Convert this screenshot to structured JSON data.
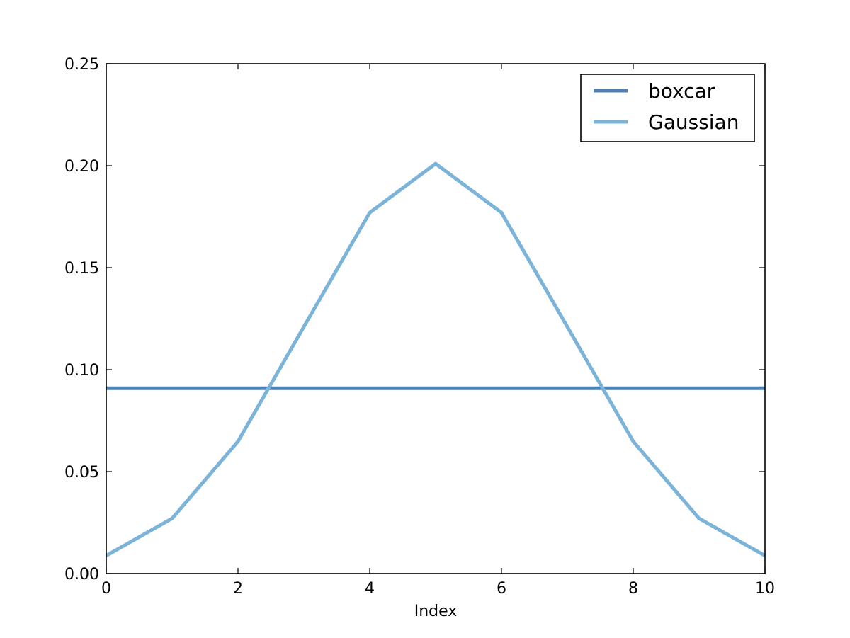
{
  "chart_data": {
    "type": "line",
    "title": "",
    "xlabel": "Index",
    "ylabel": "",
    "xlim": [
      0,
      10
    ],
    "ylim": [
      0,
      0.25
    ],
    "x_ticks": [
      0,
      2,
      4,
      6,
      8,
      10
    ],
    "x_tick_labels": [
      "0",
      "2",
      "4",
      "6",
      "8",
      "10"
    ],
    "y_ticks": [
      0,
      0.05,
      0.1,
      0.15,
      0.2,
      0.25
    ],
    "y_tick_labels": [
      "0.00",
      "0.05",
      "0.10",
      "0.15",
      "0.20",
      "0.25"
    ],
    "grid": false,
    "legend_position": "top-right",
    "x": [
      0,
      1,
      2,
      3,
      4,
      5,
      6,
      7,
      8,
      9,
      10
    ],
    "series": [
      {
        "name": "boxcar",
        "color": "#4f81b5",
        "values": [
          0.0909,
          0.0909,
          0.0909,
          0.0909,
          0.0909,
          0.0909,
          0.0909,
          0.0909,
          0.0909,
          0.0909,
          0.0909
        ]
      },
      {
        "name": "Gaussian",
        "color": "#7bb3d9",
        "values": [
          0.0088,
          0.027,
          0.0648,
          0.121,
          0.177,
          0.201,
          0.177,
          0.121,
          0.0648,
          0.027,
          0.0088
        ]
      }
    ]
  }
}
